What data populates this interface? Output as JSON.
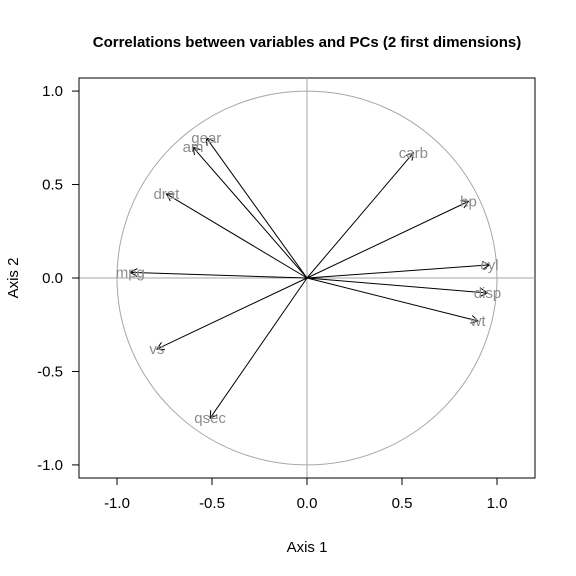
{
  "chart_data": {
    "type": "scatter",
    "subtype": "pca-correlation-circle",
    "title": "Correlations between variables and PCs (2 first dimensions)",
    "xlabel": "Axis 1",
    "ylabel": "Axis 2",
    "xlim": [
      -1.2,
      1.2
    ],
    "ylim": [
      -1.07,
      1.07
    ],
    "xticks": [
      -1.0,
      -0.5,
      0.0,
      0.5,
      1.0
    ],
    "xtick_labels": [
      "-1.0",
      "-0.5",
      "0.0",
      "0.5",
      "1.0"
    ],
    "yticks": [
      -1.0,
      -0.5,
      0.0,
      0.5,
      1.0
    ],
    "ytick_labels": [
      "-1.0",
      "-0.5",
      "0.0",
      "0.5",
      "1.0"
    ],
    "circle_radius": 1.0,
    "reference_lines": {
      "x": 0,
      "y": 0
    },
    "variables": [
      {
        "name": "mpg",
        "x": -0.93,
        "y": 0.03
      },
      {
        "name": "cyl",
        "x": 0.96,
        "y": 0.07
      },
      {
        "name": "disp",
        "x": 0.95,
        "y": -0.08
      },
      {
        "name": "hp",
        "x": 0.85,
        "y": 0.41
      },
      {
        "name": "drat",
        "x": -0.74,
        "y": 0.45
      },
      {
        "name": "wt",
        "x": 0.9,
        "y": -0.23
      },
      {
        "name": "qsec",
        "x": -0.51,
        "y": -0.75
      },
      {
        "name": "vs",
        "x": -0.79,
        "y": -0.38
      },
      {
        "name": "am",
        "x": -0.6,
        "y": 0.7
      },
      {
        "name": "gear",
        "x": -0.53,
        "y": 0.75
      },
      {
        "name": "carb",
        "x": 0.56,
        "y": 0.67
      }
    ]
  },
  "colors": {
    "arrow": "#000000",
    "circle": "#a6a6a6",
    "label": "#8c8c8c",
    "frame": "#000000"
  }
}
